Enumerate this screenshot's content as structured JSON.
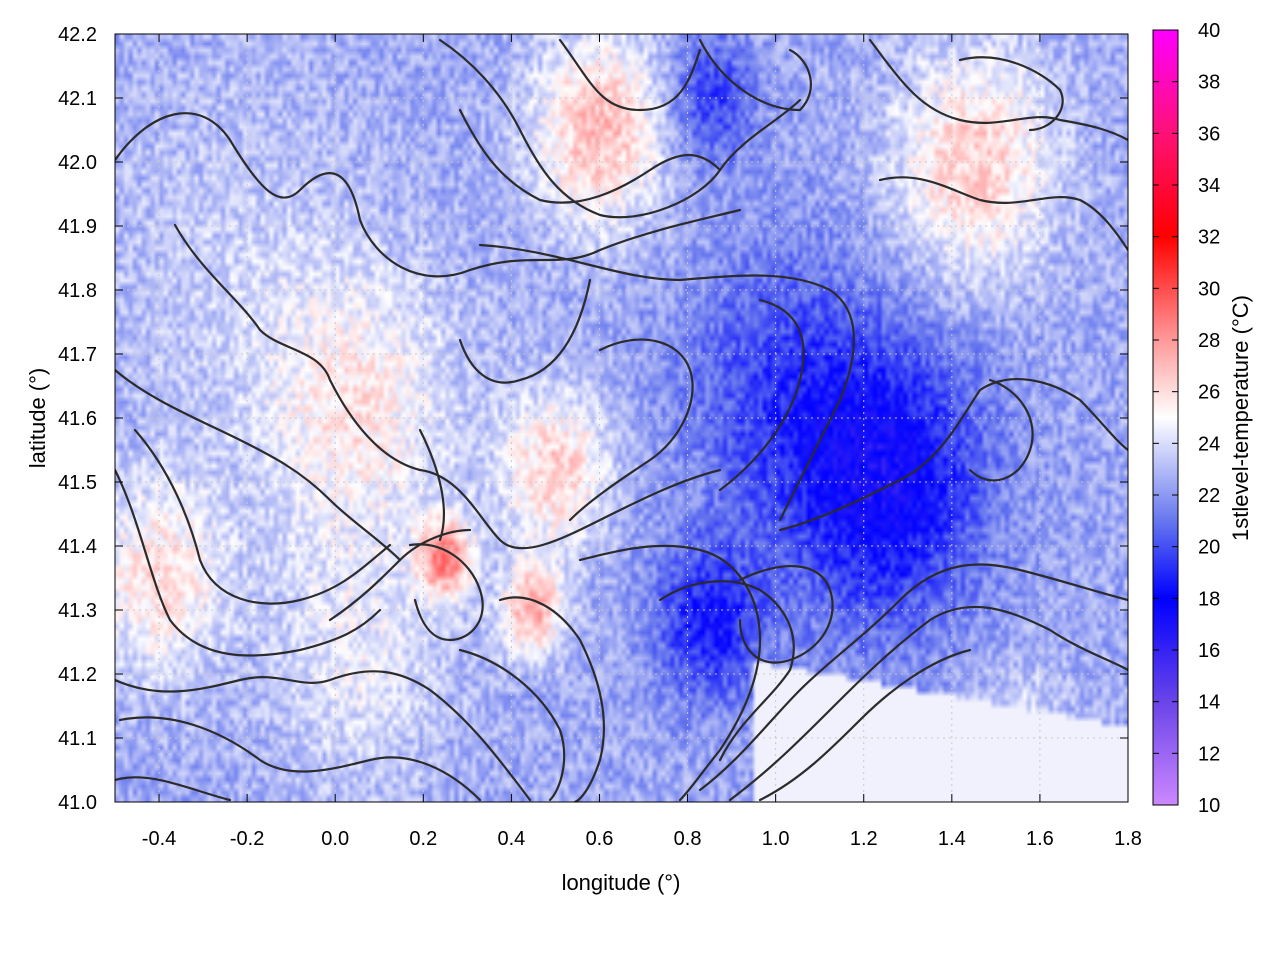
{
  "chart_data": {
    "type": "heatmap",
    "title": "",
    "xlabel": "longitude (°)",
    "ylabel": "latitude (°)",
    "colorbar_label": "1stlevel-temperature (°C)",
    "xlim": [
      -0.5,
      1.8
    ],
    "ylim": [
      41.0,
      42.2
    ],
    "x_ticks": [
      "-0.4",
      "-0.2",
      "0.0",
      "0.2",
      "0.4",
      "0.6",
      "0.8",
      "1.0",
      "1.2",
      "1.4",
      "1.6",
      "1.8"
    ],
    "y_ticks": [
      "41.0",
      "41.1",
      "41.2",
      "41.3",
      "41.4",
      "41.5",
      "41.6",
      "41.7",
      "41.8",
      "41.9",
      "42.0",
      "42.1",
      "42.2"
    ],
    "colorbar_range": [
      10,
      40
    ],
    "colorbar_ticks": [
      "10",
      "12",
      "14",
      "16",
      "18",
      "20",
      "22",
      "24",
      "26",
      "28",
      "30",
      "32",
      "34",
      "36",
      "38",
      "40"
    ],
    "colormap": [
      {
        "value": 10,
        "color": "#cc88ff"
      },
      {
        "value": 14,
        "color": "#6a44e8"
      },
      {
        "value": 18,
        "color": "#0000ff"
      },
      {
        "value": 21,
        "color": "#6677ee"
      },
      {
        "value": 25,
        "color": "#ffffff"
      },
      {
        "value": 28,
        "color": "#ff9999"
      },
      {
        "value": 32,
        "color": "#ff0000"
      },
      {
        "value": 36,
        "color": "#ff1177"
      },
      {
        "value": 40,
        "color": "#ff00ff"
      }
    ],
    "grid": true,
    "overlay": "black terrain contour lines",
    "field_hotspots": [
      {
        "lon": -0.25,
        "lat": 41.85,
        "temp": 23.5,
        "spread": 0.3
      },
      {
        "lon": 0.05,
        "lat": 41.62,
        "temp": 25.5,
        "spread": 0.22
      },
      {
        "lon": -0.4,
        "lat": 41.35,
        "temp": 26.0,
        "spread": 0.15
      },
      {
        "lon": 0.05,
        "lat": 41.22,
        "temp": 24.5,
        "spread": 0.2
      },
      {
        "lon": 0.25,
        "lat": 41.38,
        "temp": 28.5,
        "spread": 0.06
      },
      {
        "lon": 0.45,
        "lat": 41.3,
        "temp": 27.5,
        "spread": 0.07
      },
      {
        "lon": 0.5,
        "lat": 41.52,
        "temp": 26.5,
        "spread": 0.12
      },
      {
        "lon": 0.6,
        "lat": 42.05,
        "temp": 27.0,
        "spread": 0.15
      },
      {
        "lon": 1.45,
        "lat": 42.0,
        "temp": 26.5,
        "spread": 0.18
      },
      {
        "lon": 1.25,
        "lat": 41.5,
        "temp": 17.5,
        "spread": 0.22
      },
      {
        "lon": 0.85,
        "lat": 41.28,
        "temp": 18.5,
        "spread": 0.12
      },
      {
        "lon": 1.0,
        "lat": 41.65,
        "temp": 20.0,
        "spread": 0.22
      },
      {
        "lon": 0.85,
        "lat": 42.1,
        "temp": 19.5,
        "spread": 0.1
      },
      {
        "lon": 1.55,
        "lat": 41.08,
        "temp": 24.6,
        "spread": 0.12
      }
    ],
    "base_temperature": 22.5
  }
}
